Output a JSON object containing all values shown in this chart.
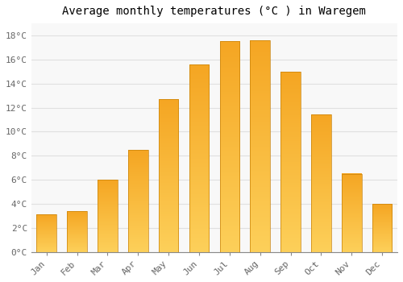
{
  "title": "Average monthly temperatures (°C ) in Waregem",
  "months": [
    "Jan",
    "Feb",
    "Mar",
    "Apr",
    "May",
    "Jun",
    "Jul",
    "Aug",
    "Sep",
    "Oct",
    "Nov",
    "Dec"
  ],
  "values": [
    3.1,
    3.4,
    6.0,
    8.5,
    12.7,
    15.6,
    17.5,
    17.6,
    15.0,
    11.4,
    6.5,
    4.0
  ],
  "bar_color": "#F5A623",
  "bar_color_light": "#FDD05A",
  "bar_edge_color": "#C8820A",
  "background_color": "#FFFFFF",
  "plot_bg_color": "#F8F8F8",
  "grid_color": "#E0E0E0",
  "ylim": [
    0,
    19
  ],
  "yticks": [
    0,
    2,
    4,
    6,
    8,
    10,
    12,
    14,
    16,
    18
  ],
  "ytick_labels": [
    "0°C",
    "2°C",
    "4°C",
    "6°C",
    "8°C",
    "10°C",
    "12°C",
    "14°C",
    "16°C",
    "18°C"
  ],
  "title_fontsize": 10,
  "tick_fontsize": 8,
  "font_family": "monospace"
}
